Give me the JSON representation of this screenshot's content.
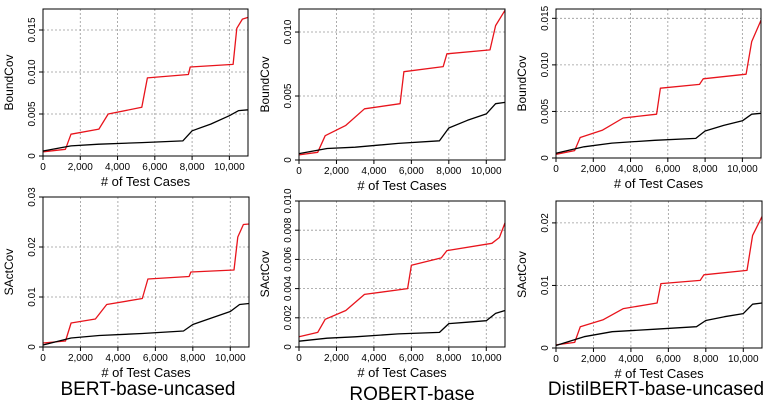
{
  "column_titles": [
    "BERT-base-uncased",
    "ROBERT-base",
    "DistilBERT-base-uncased"
  ],
  "colors": {
    "red_series": "#e8141c",
    "black_series": "#000000",
    "grid": "#999999"
  },
  "chart_data": [
    {
      "type": "line",
      "row": 0,
      "col": 0,
      "xlabel": "# of Test Cases",
      "ylabel": "BoundCov",
      "xlim": [
        0,
        11000
      ],
      "ylim": [
        0,
        0.0175
      ],
      "xticks": [
        0,
        2000,
        4000,
        6000,
        8000,
        10000
      ],
      "xtick_labels": [
        "0",
        "2,000",
        "4,000",
        "6,000",
        "8,000",
        "10,000"
      ],
      "yticks": [
        0,
        0.005,
        0.01,
        0.015
      ],
      "ytick_labels": [
        "0",
        "0.005",
        "0.010",
        "0.015"
      ],
      "grid": true,
      "series": [
        {
          "color": "#e8141c",
          "x": [
            0,
            1200,
            1500,
            3000,
            3500,
            5300,
            5600,
            7800,
            7900,
            10200,
            10400,
            10700,
            11000
          ],
          "y": [
            0.0005,
            0.0008,
            0.0026,
            0.0032,
            0.005,
            0.0058,
            0.0093,
            0.0097,
            0.0106,
            0.0109,
            0.0152,
            0.0163,
            0.0165
          ]
        },
        {
          "color": "#000000",
          "x": [
            0,
            1500,
            3000,
            5300,
            7500,
            8000,
            9000,
            10000,
            10500,
            11000
          ],
          "y": [
            0.0006,
            0.0012,
            0.0014,
            0.0016,
            0.0018,
            0.003,
            0.0038,
            0.0048,
            0.0054,
            0.0055
          ]
        }
      ]
    },
    {
      "type": "line",
      "row": 0,
      "col": 1,
      "xlabel": "# of Test Cases",
      "ylabel": "BoundCov",
      "xlim": [
        0,
        11000
      ],
      "ylim": [
        0,
        0.0118
      ],
      "xticks": [
        0,
        2000,
        4000,
        6000,
        8000,
        10000
      ],
      "xtick_labels": [
        "0",
        "2,000",
        "4,000",
        "6,000",
        "8,000",
        "10,000"
      ],
      "yticks": [
        0,
        0.005,
        0.01
      ],
      "ytick_labels": [
        "0",
        "0.005",
        "0.010"
      ],
      "grid": true,
      "series": [
        {
          "color": "#e8141c",
          "x": [
            0,
            1000,
            1400,
            2500,
            3500,
            5400,
            5600,
            7700,
            7900,
            10200,
            10500,
            11000
          ],
          "y": [
            0.0004,
            0.0006,
            0.0019,
            0.0027,
            0.004,
            0.0044,
            0.0069,
            0.0073,
            0.0083,
            0.0086,
            0.0105,
            0.0117
          ]
        },
        {
          "color": "#000000",
          "x": [
            0,
            1500,
            3000,
            5300,
            7500,
            8000,
            9000,
            10000,
            10500,
            11000
          ],
          "y": [
            0.0005,
            0.0009,
            0.001,
            0.0013,
            0.0015,
            0.0025,
            0.0031,
            0.0036,
            0.0044,
            0.0045
          ]
        }
      ]
    },
    {
      "type": "line",
      "row": 0,
      "col": 2,
      "xlabel": "# of Test Cases",
      "ylabel": "BoundCov",
      "xlim": [
        0,
        11000
      ],
      "ylim": [
        0,
        0.016
      ],
      "xticks": [
        0,
        2000,
        4000,
        6000,
        8000,
        10000
      ],
      "xtick_labels": [
        "0",
        "2,000",
        "4,000",
        "6,000",
        "8,000",
        "10,000"
      ],
      "yticks": [
        0,
        0.005,
        0.01,
        0.015
      ],
      "ytick_labels": [
        "0",
        "0.005",
        "0.010",
        "0.015"
      ],
      "grid": true,
      "series": [
        {
          "color": "#e8141c",
          "x": [
            0,
            1000,
            1300,
            2500,
            3600,
            5400,
            5600,
            7700,
            7900,
            10200,
            10500,
            11000
          ],
          "y": [
            0.0004,
            0.0008,
            0.0022,
            0.003,
            0.0043,
            0.0047,
            0.0075,
            0.0079,
            0.0085,
            0.009,
            0.0125,
            0.0148
          ]
        },
        {
          "color": "#000000",
          "x": [
            0,
            1500,
            3000,
            5300,
            7500,
            8000,
            9000,
            10000,
            10500,
            11000
          ],
          "y": [
            0.0005,
            0.0012,
            0.0016,
            0.0019,
            0.0021,
            0.0029,
            0.0035,
            0.004,
            0.0047,
            0.0048
          ]
        }
      ]
    },
    {
      "type": "line",
      "row": 1,
      "col": 0,
      "xlabel": "# of Test Cases",
      "ylabel": "SActCov",
      "xlim": [
        0,
        11000
      ],
      "ylim": [
        0,
        0.03
      ],
      "xticks": [
        0,
        2000,
        4000,
        6000,
        8000,
        10000
      ],
      "xtick_labels": [
        "0",
        "2,000",
        "4,000",
        "6,000",
        "8,000",
        "10,000"
      ],
      "yticks": [
        0,
        0.01,
        0.02,
        0.03
      ],
      "ytick_labels": [
        "0",
        "0.01",
        "0.02",
        "0.03"
      ],
      "grid": true,
      "series": [
        {
          "color": "#e8141c",
          "x": [
            0,
            1200,
            1500,
            2800,
            3400,
            5300,
            5600,
            7800,
            7900,
            10200,
            10400,
            10700,
            11000
          ],
          "y": [
            0.0008,
            0.0012,
            0.0048,
            0.0056,
            0.0085,
            0.0097,
            0.0136,
            0.0141,
            0.015,
            0.0154,
            0.022,
            0.0245,
            0.0246
          ]
        },
        {
          "color": "#000000",
          "x": [
            0,
            1500,
            3000,
            5300,
            7500,
            8000,
            9000,
            10000,
            10500,
            11000
          ],
          "y": [
            0.0004,
            0.0018,
            0.0023,
            0.0027,
            0.0032,
            0.0045,
            0.0058,
            0.0071,
            0.0085,
            0.0087
          ]
        }
      ]
    },
    {
      "type": "line",
      "row": 1,
      "col": 1,
      "xlabel": "# of Test Cases",
      "ylabel": "SActCov",
      "xlim": [
        0,
        11000
      ],
      "ylim": [
        0,
        0.01
      ],
      "xticks": [
        0,
        2000,
        4000,
        6000,
        8000,
        10000
      ],
      "xtick_labels": [
        "0",
        "2,000",
        "4,000",
        "6,000",
        "8,000",
        "10,000"
      ],
      "yticks": [
        0,
        0.002,
        0.004,
        0.006,
        0.008,
        0.01
      ],
      "ytick_labels": [
        "0",
        "0.002",
        "0.004",
        "0.006",
        "0.008",
        "0.010"
      ],
      "grid": true,
      "series": [
        {
          "color": "#e8141c",
          "x": [
            0,
            1000,
            1400,
            2500,
            3500,
            5800,
            6000,
            7600,
            7900,
            10300,
            10700,
            11000
          ],
          "y": [
            0.0007,
            0.001,
            0.0019,
            0.0025,
            0.0036,
            0.004,
            0.0056,
            0.0061,
            0.0066,
            0.0071,
            0.0075,
            0.0085
          ]
        },
        {
          "color": "#000000",
          "x": [
            0,
            1500,
            3000,
            5300,
            7500,
            8000,
            9000,
            10000,
            10500,
            11000
          ],
          "y": [
            0.0004,
            0.0006,
            0.0007,
            0.0009,
            0.001,
            0.0016,
            0.0017,
            0.0018,
            0.0023,
            0.0025
          ]
        }
      ]
    },
    {
      "type": "line",
      "row": 1,
      "col": 2,
      "xlabel": "# of Test Cases",
      "ylabel": "SActCov",
      "xlim": [
        0,
        11000
      ],
      "ylim": [
        0,
        0.0235
      ],
      "xticks": [
        0,
        2000,
        4000,
        6000,
        8000,
        10000
      ],
      "xtick_labels": [
        "0",
        "2,000",
        "4,000",
        "6,000",
        "8,000",
        "10,000"
      ],
      "yticks": [
        0,
        0.01,
        0.02
      ],
      "ytick_labels": [
        "0",
        "0.01",
        "0.02"
      ],
      "grid": true,
      "series": [
        {
          "color": "#e8141c",
          "x": [
            0,
            1000,
            1300,
            2500,
            3600,
            5400,
            5600,
            7700,
            7900,
            10200,
            10500,
            11000
          ],
          "y": [
            0.0005,
            0.0009,
            0.0034,
            0.0045,
            0.0063,
            0.0072,
            0.0103,
            0.0108,
            0.0117,
            0.0124,
            0.018,
            0.021
          ]
        },
        {
          "color": "#000000",
          "x": [
            0,
            1500,
            3000,
            5300,
            7500,
            8000,
            9000,
            10000,
            10500,
            11000
          ],
          "y": [
            0.0004,
            0.0018,
            0.0026,
            0.003,
            0.0034,
            0.0044,
            0.005,
            0.0055,
            0.007,
            0.0072
          ]
        }
      ]
    }
  ]
}
